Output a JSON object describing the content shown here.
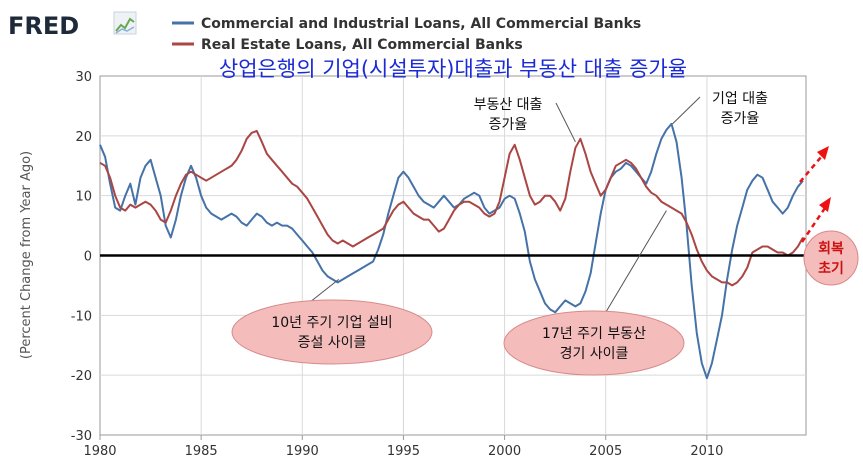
{
  "logo": {
    "text": "FRED"
  },
  "chart_data": {
    "type": "line",
    "title": "상업은행의 기업(시설투자)대출과 부동산 대출 증가율",
    "xlabel": "",
    "ylabel": "(Percent Change from Year Ago)",
    "xlim": [
      1980,
      2014.9
    ],
    "ylim": [
      -30,
      30
    ],
    "x_ticks": [
      1980,
      1985,
      1990,
      1995,
      2000,
      2005,
      2010
    ],
    "y_ticks": [
      -30,
      -20,
      -10,
      0,
      10,
      20,
      30
    ],
    "grid": true,
    "legend_position": "top",
    "series": [
      {
        "name": "Commercial and Industrial Loans, All Commercial Banks",
        "color": "#4572a7",
        "points": [
          [
            1980.0,
            18.5
          ],
          [
            1980.25,
            16.5
          ],
          [
            1980.5,
            12.0
          ],
          [
            1980.75,
            8.0
          ],
          [
            1981.0,
            7.5
          ],
          [
            1981.25,
            10.0
          ],
          [
            1981.5,
            12.0
          ],
          [
            1981.75,
            8.5
          ],
          [
            1982.0,
            13.0
          ],
          [
            1982.25,
            15.0
          ],
          [
            1982.5,
            16.0
          ],
          [
            1982.75,
            13.0
          ],
          [
            1983.0,
            10.0
          ],
          [
            1983.25,
            5.0
          ],
          [
            1983.5,
            3.0
          ],
          [
            1983.75,
            6.0
          ],
          [
            1984.0,
            10.0
          ],
          [
            1984.25,
            13.0
          ],
          [
            1984.5,
            15.0
          ],
          [
            1984.75,
            13.0
          ],
          [
            1985.0,
            10.0
          ],
          [
            1985.25,
            8.0
          ],
          [
            1985.5,
            7.0
          ],
          [
            1985.75,
            6.5
          ],
          [
            1986.0,
            6.0
          ],
          [
            1986.25,
            6.5
          ],
          [
            1986.5,
            7.0
          ],
          [
            1986.75,
            6.5
          ],
          [
            1987.0,
            5.5
          ],
          [
            1987.25,
            5.0
          ],
          [
            1987.5,
            6.0
          ],
          [
            1987.75,
            7.0
          ],
          [
            1988.0,
            6.5
          ],
          [
            1988.25,
            5.5
          ],
          [
            1988.5,
            5.0
          ],
          [
            1988.75,
            5.5
          ],
          [
            1989.0,
            5.0
          ],
          [
            1989.25,
            5.0
          ],
          [
            1989.5,
            4.5
          ],
          [
            1989.75,
            3.5
          ],
          [
            1990.0,
            2.5
          ],
          [
            1990.25,
            1.5
          ],
          [
            1990.5,
            0.5
          ],
          [
            1990.75,
            -1.0
          ],
          [
            1991.0,
            -2.5
          ],
          [
            1991.25,
            -3.5
          ],
          [
            1991.5,
            -4.0
          ],
          [
            1991.75,
            -4.5
          ],
          [
            1992.0,
            -4.0
          ],
          [
            1992.25,
            -3.5
          ],
          [
            1992.5,
            -3.0
          ],
          [
            1992.75,
            -2.5
          ],
          [
            1993.0,
            -2.0
          ],
          [
            1993.25,
            -1.5
          ],
          [
            1993.5,
            -1.0
          ],
          [
            1993.75,
            1.0
          ],
          [
            1994.0,
            3.5
          ],
          [
            1994.25,
            7.0
          ],
          [
            1994.5,
            10.0
          ],
          [
            1994.75,
            13.0
          ],
          [
            1995.0,
            14.0
          ],
          [
            1995.25,
            13.0
          ],
          [
            1995.5,
            11.5
          ],
          [
            1995.75,
            10.0
          ],
          [
            1996.0,
            9.0
          ],
          [
            1996.25,
            8.5
          ],
          [
            1996.5,
            8.0
          ],
          [
            1996.75,
            9.0
          ],
          [
            1997.0,
            10.0
          ],
          [
            1997.25,
            9.0
          ],
          [
            1997.5,
            8.0
          ],
          [
            1997.75,
            8.5
          ],
          [
            1998.0,
            9.5
          ],
          [
            1998.25,
            10.0
          ],
          [
            1998.5,
            10.5
          ],
          [
            1998.75,
            10.0
          ],
          [
            1999.0,
            8.0
          ],
          [
            1999.25,
            7.0
          ],
          [
            1999.5,
            7.5
          ],
          [
            1999.75,
            8.0
          ],
          [
            2000.0,
            9.5
          ],
          [
            2000.25,
            10.0
          ],
          [
            2000.5,
            9.5
          ],
          [
            2000.75,
            7.0
          ],
          [
            2001.0,
            4.0
          ],
          [
            2001.25,
            -1.0
          ],
          [
            2001.5,
            -4.0
          ],
          [
            2001.75,
            -6.0
          ],
          [
            2002.0,
            -8.0
          ],
          [
            2002.25,
            -9.0
          ],
          [
            2002.5,
            -9.5
          ],
          [
            2002.75,
            -8.5
          ],
          [
            2003.0,
            -7.5
          ],
          [
            2003.25,
            -8.0
          ],
          [
            2003.5,
            -8.5
          ],
          [
            2003.75,
            -8.0
          ],
          [
            2004.0,
            -6.0
          ],
          [
            2004.25,
            -3.0
          ],
          [
            2004.5,
            2.0
          ],
          [
            2004.75,
            7.0
          ],
          [
            2005.0,
            11.0
          ],
          [
            2005.25,
            13.0
          ],
          [
            2005.5,
            14.0
          ],
          [
            2005.75,
            14.5
          ],
          [
            2006.0,
            15.5
          ],
          [
            2006.25,
            15.0
          ],
          [
            2006.5,
            14.0
          ],
          [
            2006.75,
            13.0
          ],
          [
            2007.0,
            12.0
          ],
          [
            2007.25,
            14.0
          ],
          [
            2007.5,
            17.0
          ],
          [
            2007.75,
            19.5
          ],
          [
            2008.0,
            21.0
          ],
          [
            2008.25,
            22.0
          ],
          [
            2008.5,
            19.0
          ],
          [
            2008.75,
            13.0
          ],
          [
            2009.0,
            5.0
          ],
          [
            2009.25,
            -5.0
          ],
          [
            2009.5,
            -13.0
          ],
          [
            2009.75,
            -18.0
          ],
          [
            2010.0,
            -20.5
          ],
          [
            2010.25,
            -18.0
          ],
          [
            2010.5,
            -14.0
          ],
          [
            2010.75,
            -10.0
          ],
          [
            2011.0,
            -4.0
          ],
          [
            2011.25,
            1.0
          ],
          [
            2011.5,
            5.0
          ],
          [
            2011.75,
            8.0
          ],
          [
            2012.0,
            11.0
          ],
          [
            2012.25,
            12.5
          ],
          [
            2012.5,
            13.5
          ],
          [
            2012.75,
            13.0
          ],
          [
            2013.0,
            11.0
          ],
          [
            2013.25,
            9.0
          ],
          [
            2013.5,
            8.0
          ],
          [
            2013.75,
            7.0
          ],
          [
            2014.0,
            8.0
          ],
          [
            2014.25,
            10.0
          ],
          [
            2014.5,
            11.5
          ],
          [
            2014.75,
            12.5
          ]
        ]
      },
      {
        "name": "Real Estate Loans, All Commercial Banks",
        "color": "#aa4643",
        "points": [
          [
            1980.0,
            15.5
          ],
          [
            1980.25,
            15.0
          ],
          [
            1980.5,
            13.0
          ],
          [
            1980.75,
            10.0
          ],
          [
            1981.0,
            8.0
          ],
          [
            1981.25,
            7.5
          ],
          [
            1981.5,
            8.5
          ],
          [
            1981.75,
            8.0
          ],
          [
            1982.0,
            8.5
          ],
          [
            1982.25,
            9.0
          ],
          [
            1982.5,
            8.5
          ],
          [
            1982.75,
            7.5
          ],
          [
            1983.0,
            6.0
          ],
          [
            1983.25,
            5.5
          ],
          [
            1983.5,
            7.5
          ],
          [
            1983.75,
            10.0
          ],
          [
            1984.0,
            12.0
          ],
          [
            1984.25,
            13.5
          ],
          [
            1984.5,
            14.0
          ],
          [
            1984.75,
            13.5
          ],
          [
            1985.0,
            13.0
          ],
          [
            1985.25,
            12.5
          ],
          [
            1985.5,
            13.0
          ],
          [
            1985.75,
            13.5
          ],
          [
            1986.0,
            14.0
          ],
          [
            1986.25,
            14.5
          ],
          [
            1986.5,
            15.0
          ],
          [
            1986.75,
            16.0
          ],
          [
            1987.0,
            17.5
          ],
          [
            1987.25,
            19.5
          ],
          [
            1987.5,
            20.5
          ],
          [
            1987.75,
            20.8
          ],
          [
            1988.0,
            19.0
          ],
          [
            1988.25,
            17.0
          ],
          [
            1988.5,
            16.0
          ],
          [
            1988.75,
            15.0
          ],
          [
            1989.0,
            14.0
          ],
          [
            1989.25,
            13.0
          ],
          [
            1989.5,
            12.0
          ],
          [
            1989.75,
            11.5
          ],
          [
            1990.0,
            10.5
          ],
          [
            1990.25,
            9.5
          ],
          [
            1990.5,
            8.0
          ],
          [
            1990.75,
            6.5
          ],
          [
            1991.0,
            5.0
          ],
          [
            1991.25,
            3.5
          ],
          [
            1991.5,
            2.5
          ],
          [
            1991.75,
            2.0
          ],
          [
            1992.0,
            2.5
          ],
          [
            1992.25,
            2.0
          ],
          [
            1992.5,
            1.5
          ],
          [
            1992.75,
            2.0
          ],
          [
            1993.0,
            2.5
          ],
          [
            1993.25,
            3.0
          ],
          [
            1993.5,
            3.5
          ],
          [
            1993.75,
            4.0
          ],
          [
            1994.0,
            4.5
          ],
          [
            1994.25,
            6.0
          ],
          [
            1994.5,
            7.5
          ],
          [
            1994.75,
            8.5
          ],
          [
            1995.0,
            9.0
          ],
          [
            1995.25,
            8.0
          ],
          [
            1995.5,
            7.0
          ],
          [
            1995.75,
            6.5
          ],
          [
            1996.0,
            6.0
          ],
          [
            1996.25,
            6.0
          ],
          [
            1996.5,
            5.0
          ],
          [
            1996.75,
            4.0
          ],
          [
            1997.0,
            4.5
          ],
          [
            1997.25,
            6.0
          ],
          [
            1997.5,
            7.5
          ],
          [
            1997.75,
            8.5
          ],
          [
            1998.0,
            9.0
          ],
          [
            1998.25,
            9.0
          ],
          [
            1998.5,
            8.5
          ],
          [
            1998.75,
            8.0
          ],
          [
            1999.0,
            7.0
          ],
          [
            1999.25,
            6.5
          ],
          [
            1999.5,
            7.0
          ],
          [
            1999.75,
            9.0
          ],
          [
            2000.0,
            13.0
          ],
          [
            2000.25,
            17.0
          ],
          [
            2000.5,
            18.5
          ],
          [
            2000.75,
            16.0
          ],
          [
            2001.0,
            13.0
          ],
          [
            2001.25,
            10.0
          ],
          [
            2001.5,
            8.5
          ],
          [
            2001.75,
            9.0
          ],
          [
            2002.0,
            10.0
          ],
          [
            2002.25,
            10.0
          ],
          [
            2002.5,
            9.0
          ],
          [
            2002.75,
            7.5
          ],
          [
            2003.0,
            9.5
          ],
          [
            2003.25,
            14.0
          ],
          [
            2003.5,
            18.0
          ],
          [
            2003.75,
            19.5
          ],
          [
            2004.0,
            17.0
          ],
          [
            2004.25,
            14.0
          ],
          [
            2004.5,
            12.0
          ],
          [
            2004.75,
            10.0
          ],
          [
            2005.0,
            11.0
          ],
          [
            2005.25,
            13.0
          ],
          [
            2005.5,
            15.0
          ],
          [
            2005.75,
            15.5
          ],
          [
            2006.0,
            16.0
          ],
          [
            2006.25,
            15.5
          ],
          [
            2006.5,
            14.5
          ],
          [
            2006.75,
            13.0
          ],
          [
            2007.0,
            11.5
          ],
          [
            2007.25,
            10.5
          ],
          [
            2007.5,
            10.0
          ],
          [
            2007.75,
            9.0
          ],
          [
            2008.0,
            8.5
          ],
          [
            2008.25,
            8.0
          ],
          [
            2008.5,
            7.5
          ],
          [
            2008.75,
            7.0
          ],
          [
            2009.0,
            5.5
          ],
          [
            2009.25,
            3.5
          ],
          [
            2009.5,
            1.0
          ],
          [
            2009.75,
            -1.0
          ],
          [
            2010.0,
            -2.5
          ],
          [
            2010.25,
            -3.5
          ],
          [
            2010.5,
            -4.0
          ],
          [
            2010.75,
            -4.5
          ],
          [
            2011.0,
            -4.5
          ],
          [
            2011.25,
            -5.0
          ],
          [
            2011.5,
            -4.5
          ],
          [
            2011.75,
            -3.5
          ],
          [
            2012.0,
            -2.0
          ],
          [
            2012.25,
            0.5
          ],
          [
            2012.5,
            1.0
          ],
          [
            2012.75,
            1.5
          ],
          [
            2013.0,
            1.5
          ],
          [
            2013.25,
            1.0
          ],
          [
            2013.5,
            0.5
          ],
          [
            2013.75,
            0.5
          ],
          [
            2014.0,
            0.0
          ],
          [
            2014.25,
            0.5
          ],
          [
            2014.5,
            1.5
          ],
          [
            2014.75,
            3.0
          ]
        ]
      }
    ],
    "annotations": [
      {
        "text": [
          "10년 주기 기업 설비",
          "증설 사이클"
        ],
        "target": [
          1991.8,
          -4.0
        ]
      },
      {
        "text": [
          "17년 주기 부동산",
          "경기 사이클"
        ],
        "target": [
          2008.0,
          7.5
        ]
      },
      {
        "text": [
          "부동산 대출",
          "증가율"
        ],
        "target": [
          2003.5,
          19.0
        ]
      },
      {
        "text": [
          "기업 대출",
          "증가율"
        ],
        "target": [
          2008.3,
          22.0
        ]
      },
      {
        "text": [
          "회복",
          "초기"
        ]
      }
    ],
    "zero_line_color": "#000000",
    "recovery_arrow_color": "#ee1111"
  }
}
